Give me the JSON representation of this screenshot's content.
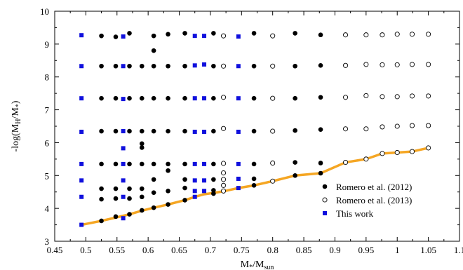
{
  "chart_data": {
    "type": "scatter",
    "xlabel": "M*/Msun",
    "ylabel": "-log(MH/M*)",
    "xlim": [
      0.45,
      1.1
    ],
    "ylim": [
      3,
      10
    ],
    "x_ticks": [
      "0.45",
      "0.5",
      "0.55",
      "0.6",
      "0.65",
      "0.7",
      "0.75",
      "0.8",
      "0.85",
      "0.9",
      "0.95",
      "1",
      "1.05",
      "1.1"
    ],
    "y_ticks": [
      "3",
      "4",
      "5",
      "6",
      "7",
      "8",
      "9",
      "10"
    ],
    "grid": false,
    "legend_position": "bottom-right",
    "series": [
      {
        "name": "Romero et al. (2012)",
        "marker": "filled-circle",
        "color": "#000000",
        "points": [
          [
            0.525,
            3.62
          ],
          [
            0.525,
            4.28
          ],
          [
            0.525,
            4.6
          ],
          [
            0.525,
            5.35
          ],
          [
            0.525,
            6.35
          ],
          [
            0.525,
            7.35
          ],
          [
            0.525,
            8.33
          ],
          [
            0.525,
            9.25
          ],
          [
            0.548,
            3.75
          ],
          [
            0.548,
            4.3
          ],
          [
            0.548,
            4.6
          ],
          [
            0.548,
            5.35
          ],
          [
            0.548,
            6.35
          ],
          [
            0.548,
            7.35
          ],
          [
            0.548,
            8.33
          ],
          [
            0.548,
            9.22
          ],
          [
            0.57,
            3.82
          ],
          [
            0.57,
            4.3
          ],
          [
            0.57,
            4.6
          ],
          [
            0.57,
            5.35
          ],
          [
            0.57,
            6.35
          ],
          [
            0.57,
            7.35
          ],
          [
            0.57,
            8.33
          ],
          [
            0.57,
            9.33
          ],
          [
            0.59,
            3.94
          ],
          [
            0.59,
            4.35
          ],
          [
            0.59,
            4.6
          ],
          [
            0.59,
            5.35
          ],
          [
            0.59,
            5.85
          ],
          [
            0.59,
            5.97
          ],
          [
            0.59,
            6.35
          ],
          [
            0.59,
            7.35
          ],
          [
            0.59,
            8.33
          ],
          [
            0.609,
            4.02
          ],
          [
            0.609,
            4.48
          ],
          [
            0.609,
            4.88
          ],
          [
            0.609,
            5.35
          ],
          [
            0.609,
            6.35
          ],
          [
            0.609,
            7.35
          ],
          [
            0.609,
            8.33
          ],
          [
            0.609,
            8.8
          ],
          [
            0.609,
            9.25
          ],
          [
            0.632,
            4.12
          ],
          [
            0.632,
            4.53
          ],
          [
            0.632,
            5.15
          ],
          [
            0.632,
            5.35
          ],
          [
            0.632,
            6.35
          ],
          [
            0.632,
            7.35
          ],
          [
            0.632,
            8.33
          ],
          [
            0.632,
            9.3
          ],
          [
            0.659,
            4.25
          ],
          [
            0.659,
            4.62
          ],
          [
            0.659,
            4.88
          ],
          [
            0.659,
            5.35
          ],
          [
            0.659,
            6.35
          ],
          [
            0.659,
            7.35
          ],
          [
            0.659,
            8.33
          ],
          [
            0.659,
            9.33
          ],
          [
            0.705,
            4.45
          ],
          [
            0.705,
            4.55
          ],
          [
            0.705,
            4.88
          ],
          [
            0.705,
            5.35
          ],
          [
            0.705,
            6.35
          ],
          [
            0.705,
            7.35
          ],
          [
            0.705,
            8.33
          ],
          [
            0.705,
            9.33
          ],
          [
            0.77,
            4.7
          ],
          [
            0.77,
            4.9
          ],
          [
            0.77,
            5.35
          ],
          [
            0.77,
            6.35
          ],
          [
            0.77,
            7.35
          ],
          [
            0.77,
            8.33
          ],
          [
            0.77,
            9.33
          ],
          [
            0.836,
            5.0
          ],
          [
            0.836,
            5.4
          ],
          [
            0.836,
            6.37
          ],
          [
            0.836,
            7.35
          ],
          [
            0.836,
            8.33
          ],
          [
            0.836,
            9.33
          ],
          [
            0.877,
            5.07
          ],
          [
            0.877,
            5.38
          ],
          [
            0.877,
            6.4
          ],
          [
            0.877,
            7.38
          ],
          [
            0.877,
            8.35
          ],
          [
            0.877,
            9.28
          ]
        ]
      },
      {
        "name": "Romero et al. (2013)",
        "marker": "open-circle",
        "color": "#000000",
        "points": [
          [
            0.721,
            4.53
          ],
          [
            0.721,
            4.7
          ],
          [
            0.721,
            4.88
          ],
          [
            0.721,
            5.08
          ],
          [
            0.721,
            5.37
          ],
          [
            0.721,
            6.43
          ],
          [
            0.721,
            7.38
          ],
          [
            0.721,
            8.33
          ],
          [
            0.721,
            9.25
          ],
          [
            0.8,
            4.83
          ],
          [
            0.8,
            5.38
          ],
          [
            0.8,
            6.35
          ],
          [
            0.8,
            7.35
          ],
          [
            0.8,
            8.33
          ],
          [
            0.8,
            9.25
          ],
          [
            0.917,
            5.4
          ],
          [
            0.917,
            6.42
          ],
          [
            0.917,
            7.38
          ],
          [
            0.917,
            8.35
          ],
          [
            0.917,
            9.28
          ],
          [
            0.95,
            5.5
          ],
          [
            0.95,
            6.42
          ],
          [
            0.95,
            7.43
          ],
          [
            0.95,
            8.38
          ],
          [
            0.95,
            9.28
          ],
          [
            0.976,
            5.67
          ],
          [
            0.976,
            6.48
          ],
          [
            0.976,
            7.4
          ],
          [
            0.976,
            8.37
          ],
          [
            0.976,
            9.28
          ],
          [
            1.0,
            5.7
          ],
          [
            1.0,
            6.5
          ],
          [
            1.0,
            7.4
          ],
          [
            1.0,
            8.37
          ],
          [
            1.0,
            9.3
          ],
          [
            1.024,
            5.73
          ],
          [
            1.024,
            6.52
          ],
          [
            1.024,
            7.42
          ],
          [
            1.024,
            8.38
          ],
          [
            1.024,
            9.3
          ],
          [
            1.05,
            5.84
          ],
          [
            1.05,
            6.52
          ],
          [
            1.05,
            7.42
          ],
          [
            1.05,
            8.38
          ],
          [
            1.05,
            9.3
          ]
        ]
      },
      {
        "name": "This work",
        "marker": "filled-square",
        "color": "#1010dd",
        "points": [
          [
            0.493,
            3.5
          ],
          [
            0.493,
            4.35
          ],
          [
            0.493,
            4.85
          ],
          [
            0.493,
            5.35
          ],
          [
            0.493,
            6.33
          ],
          [
            0.493,
            7.35
          ],
          [
            0.493,
            8.33
          ],
          [
            0.493,
            9.27
          ],
          [
            0.56,
            3.7
          ],
          [
            0.56,
            4.35
          ],
          [
            0.56,
            4.85
          ],
          [
            0.56,
            5.35
          ],
          [
            0.56,
            5.83
          ],
          [
            0.56,
            6.35
          ],
          [
            0.56,
            7.33
          ],
          [
            0.56,
            8.33
          ],
          [
            0.56,
            9.23
          ],
          [
            0.675,
            4.35
          ],
          [
            0.675,
            4.53
          ],
          [
            0.675,
            4.85
          ],
          [
            0.675,
            5.35
          ],
          [
            0.675,
            6.33
          ],
          [
            0.675,
            7.35
          ],
          [
            0.675,
            8.35
          ],
          [
            0.675,
            9.25
          ],
          [
            0.69,
            4.53
          ],
          [
            0.69,
            4.85
          ],
          [
            0.69,
            5.35
          ],
          [
            0.69,
            6.33
          ],
          [
            0.69,
            7.35
          ],
          [
            0.69,
            8.38
          ],
          [
            0.69,
            9.25
          ],
          [
            0.745,
            4.62
          ],
          [
            0.745,
            4.9
          ],
          [
            0.745,
            5.35
          ],
          [
            0.745,
            6.33
          ],
          [
            0.745,
            7.35
          ],
          [
            0.745,
            8.33
          ],
          [
            0.745,
            9.23
          ]
        ]
      },
      {
        "marker": "line",
        "color": "#f5a623",
        "points": [
          [
            0.493,
            3.5
          ],
          [
            0.525,
            3.62
          ],
          [
            0.548,
            3.72
          ],
          [
            0.57,
            3.82
          ],
          [
            0.59,
            3.93
          ],
          [
            0.609,
            4.02
          ],
          [
            0.632,
            4.12
          ],
          [
            0.659,
            4.25
          ],
          [
            0.675,
            4.35
          ],
          [
            0.69,
            4.43
          ],
          [
            0.705,
            4.47
          ],
          [
            0.721,
            4.52
          ],
          [
            0.745,
            4.62
          ],
          [
            0.77,
            4.7
          ],
          [
            0.8,
            4.83
          ],
          [
            0.836,
            5.0
          ],
          [
            0.877,
            5.07
          ],
          [
            0.917,
            5.4
          ],
          [
            0.95,
            5.5
          ],
          [
            0.976,
            5.67
          ],
          [
            1.0,
            5.7
          ],
          [
            1.024,
            5.73
          ],
          [
            1.05,
            5.84
          ]
        ]
      }
    ]
  }
}
